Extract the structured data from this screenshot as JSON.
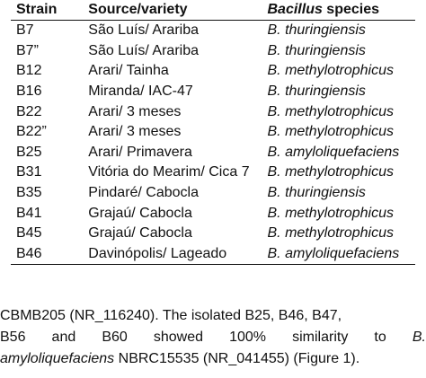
{
  "table": {
    "headers": {
      "strain": "Strain",
      "source": "Source/variety",
      "species_bold_italic": "Bacillus",
      "species_rest": " species"
    },
    "rows": [
      {
        "strain": "B7",
        "source": "São Luís/ Arariba",
        "species": "B. thuringiensis"
      },
      {
        "strain": "B7”",
        "source": "São Luís/ Arariba",
        "species": "B. thuringiensis"
      },
      {
        "strain": "B12",
        "source": "Arari/ Tainha",
        "species": "B.  methylotrophicus"
      },
      {
        "strain": "B16",
        "source": "Miranda/ IAC-47",
        "species": "B.  thuringiensis"
      },
      {
        "strain": "B22",
        "source": "Arari/ 3 meses",
        "species": "B. methylotrophicus"
      },
      {
        "strain": "B22”",
        "source": "Arari/ 3 meses",
        "species": "B. methylotrophicus"
      },
      {
        "strain": "B25",
        "source": "Arari/ Primavera",
        "species": "B. amyloliquefaciens"
      },
      {
        "strain": "B31",
        "source": "Vitória do Mearim/ Cica 7",
        "species": "B. methylotrophicus"
      },
      {
        "strain": "B35",
        "source": "Pindaré/ Cabocla",
        "species": "B. thuringiensis"
      },
      {
        "strain": "B41",
        "source": "Grajaú/ Cabocla",
        "species": "B. methylotrophicus"
      },
      {
        "strain": "B45",
        "source": "Grajaú/ Cabocla",
        "species": "B. methylotrophicus"
      },
      {
        "strain": "B46",
        "source": "Davinópolis/ Lageado",
        "species": "B. amyloliquefaciens"
      }
    ]
  },
  "caption": {
    "line1": "CBMB205 (NR_116240). The isolated B25, B46, B47,",
    "line2_words": [
      "B56",
      "and",
      "B60",
      "showed",
      "100%",
      "similarity",
      "to",
      "B."
    ],
    "line3_italic": "amyloliquefaciens",
    "line3_rest": " NBRC15535 (NR_041455) (Figure 1)."
  }
}
